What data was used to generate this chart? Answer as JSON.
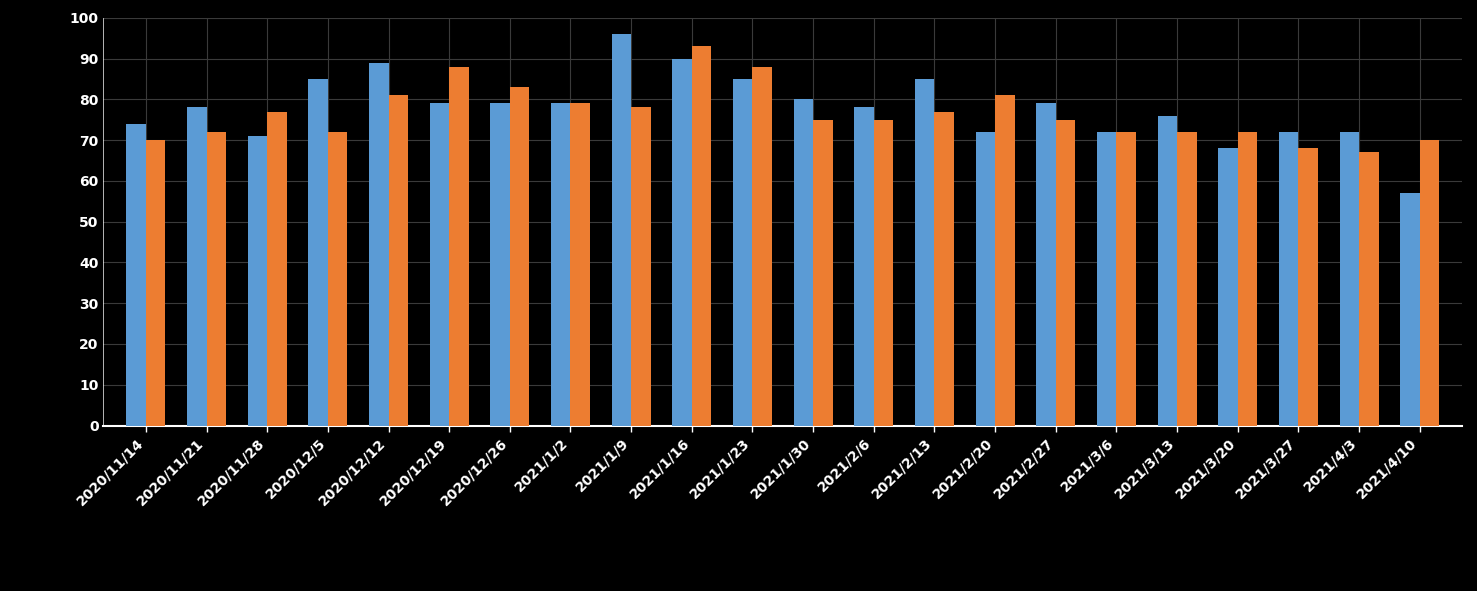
{
  "categories": [
    "2020/11/14",
    "2020/11/21",
    "2020/11/28",
    "2020/12/5",
    "2020/12/12",
    "2020/12/19",
    "2020/12/26",
    "2021/1/2",
    "2021/1/9",
    "2021/1/16",
    "2021/1/23",
    "2021/1/30",
    "2021/2/6",
    "2021/2/13",
    "2021/2/20",
    "2021/2/27",
    "2021/3/6",
    "2021/3/13",
    "2021/3/20",
    "2021/3/27",
    "2021/4/3",
    "2021/4/10"
  ],
  "blue_values": [
    74,
    78,
    71,
    85,
    89,
    79,
    79,
    79,
    96,
    90,
    85,
    80,
    78,
    85,
    72,
    79,
    72,
    76,
    68,
    72,
    72,
    57
  ],
  "orange_values": [
    70,
    72,
    77,
    72,
    81,
    88,
    83,
    79,
    78,
    93,
    88,
    75,
    75,
    77,
    81,
    75,
    72,
    72,
    72,
    68,
    67,
    70
  ],
  "blue_color": "#5B9BD5",
  "orange_color": "#ED7D31",
  "background_color": "#000000",
  "grid_color": "#3a3a3a",
  "text_color": "#ffffff",
  "ylim": [
    0,
    100
  ],
  "yticks": [
    0,
    10,
    20,
    30,
    40,
    50,
    60,
    70,
    80,
    90,
    100
  ],
  "bar_width": 0.32,
  "figsize": [
    14.77,
    5.91
  ],
  "dpi": 100
}
